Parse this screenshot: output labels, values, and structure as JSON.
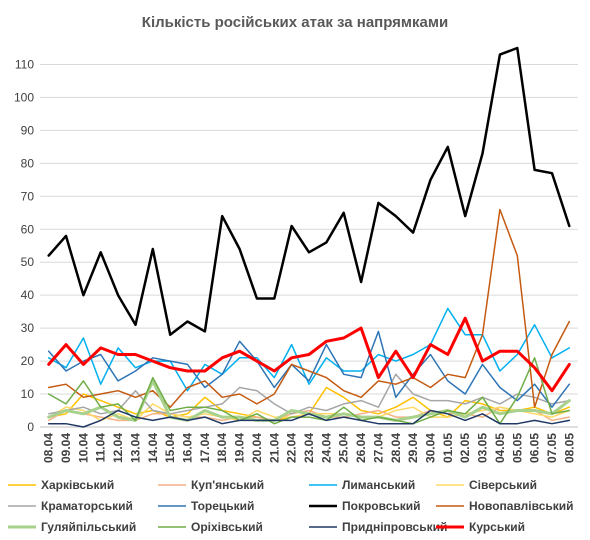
{
  "chart_data": {
    "type": "line",
    "title": "Кількість російських атак за напрямками",
    "xlabel": "",
    "ylabel": "",
    "ylim": [
      0,
      115
    ],
    "yticks": [
      0,
      10,
      20,
      30,
      40,
      50,
      60,
      70,
      80,
      90,
      100,
      110
    ],
    "grid": "horizontal",
    "legend_position": "bottom",
    "x": [
      "08.04",
      "09.04",
      "10.04",
      "11.04",
      "12.04",
      "13.04",
      "14.04",
      "15.04",
      "16.04",
      "17.04",
      "18.04",
      "19.04",
      "20.04",
      "21.04",
      "22.04",
      "23.04",
      "24.04",
      "25.04",
      "26.04",
      "27.04",
      "28.04",
      "29.04",
      "30.04",
      "01.05",
      "02.05",
      "03.05",
      "04.05",
      "05.05",
      "06.05",
      "07.05",
      "08.05"
    ],
    "series": [
      {
        "name": "Харківський",
        "color": "#ffc000",
        "width": 1.5,
        "values": [
          3,
          4,
          10,
          8,
          6,
          4,
          5,
          3,
          4,
          9,
          5,
          4,
          3,
          2,
          3,
          4,
          12,
          9,
          5,
          4,
          6,
          9,
          5,
          3,
          8,
          7,
          5,
          5,
          6,
          4,
          6
        ]
      },
      {
        "name": "Куп'янський",
        "color": "#f4b183",
        "width": 1.5,
        "values": [
          2,
          5,
          4,
          3,
          2,
          2,
          4,
          4,
          3,
          3,
          2,
          3,
          3,
          2,
          4,
          5,
          3,
          3,
          4,
          5,
          3,
          3,
          5,
          4,
          4,
          3,
          6,
          5,
          5,
          2,
          3
        ]
      },
      {
        "name": "Лиманський",
        "color": "#00b0f0",
        "width": 1.5,
        "values": [
          21,
          18,
          27,
          13,
          24,
          18,
          20,
          20,
          11,
          19,
          16,
          21,
          21,
          15,
          25,
          13,
          21,
          17,
          17,
          22,
          20,
          22,
          25,
          36,
          28,
          28,
          17,
          22,
          31,
          21,
          24
        ]
      },
      {
        "name": "Сіверський",
        "color": "#ffd966",
        "width": 1.5,
        "values": [
          3,
          6,
          5,
          2,
          4,
          2,
          7,
          4,
          3,
          4,
          3,
          2,
          5,
          3,
          3,
          4,
          4,
          4,
          3,
          3,
          5,
          6,
          3,
          3,
          4,
          5,
          6,
          5,
          4,
          3,
          5
        ]
      },
      {
        "name": "Краматорський",
        "color": "#a6a6a6",
        "width": 1.5,
        "values": [
          4,
          5,
          6,
          4,
          5,
          11,
          5,
          4,
          5,
          6,
          7,
          12,
          11,
          7,
          4,
          6,
          5,
          7,
          8,
          6,
          16,
          10,
          8,
          8,
          7,
          9,
          7,
          10,
          9,
          7,
          8
        ]
      },
      {
        "name": "Торецький",
        "color": "#2e75b6",
        "width": 1.5,
        "values": [
          23,
          17,
          20,
          22,
          14,
          17,
          21,
          20,
          19,
          12,
          16,
          26,
          20,
          12,
          19,
          14,
          25,
          16,
          15,
          29,
          9,
          16,
          22,
          14,
          10,
          19,
          12,
          8,
          13,
          6,
          13
        ]
      },
      {
        "name": "Покровський",
        "color": "#000000",
        "width": 2.5,
        "values": [
          52,
          58,
          40,
          53,
          40,
          31,
          54,
          28,
          32,
          29,
          64,
          54,
          39,
          39,
          61,
          53,
          56,
          65,
          44,
          68,
          64,
          59,
          75,
          85,
          64,
          83,
          113,
          115,
          78,
          77,
          61
        ]
      },
      {
        "name": "Новопавлівський",
        "color": "#c55a11",
        "width": 1.5,
        "values": [
          12,
          13,
          9,
          10,
          11,
          9,
          11,
          6,
          12,
          14,
          9,
          10,
          7,
          10,
          19,
          17,
          15,
          11,
          9,
          14,
          13,
          15,
          12,
          16,
          15,
          28,
          66,
          52,
          6,
          22,
          32
        ]
      },
      {
        "name": "Гуляйпільський",
        "color": "#a9d18e",
        "width": 3,
        "values": [
          3,
          5,
          4,
          6,
          3,
          2,
          14,
          3,
          2,
          5,
          3,
          3,
          2,
          2,
          5,
          4,
          3,
          4,
          3,
          3,
          2,
          3,
          4,
          5,
          3,
          6,
          4,
          5,
          5,
          4,
          8
        ]
      },
      {
        "name": "Оріхівський",
        "color": "#70ad47",
        "width": 1.5,
        "values": [
          10,
          7,
          14,
          6,
          7,
          2,
          15,
          5,
          6,
          6,
          5,
          2,
          4,
          1,
          3,
          3,
          2,
          6,
          2,
          3,
          2,
          1,
          3,
          5,
          4,
          9,
          1,
          9,
          21,
          4,
          5
        ]
      },
      {
        "name": "Придніпровський",
        "color": "#1f3864",
        "width": 1.5,
        "values": [
          1,
          1,
          0,
          2,
          5,
          3,
          2,
          3,
          2,
          3,
          1,
          2,
          2,
          2,
          2,
          4,
          2,
          3,
          2,
          1,
          1,
          1,
          5,
          4,
          2,
          4,
          1,
          1,
          2,
          1,
          2
        ]
      },
      {
        "name": "Курський",
        "color": "#ff0000",
        "width": 3,
        "values": [
          19,
          25,
          19,
          24,
          22,
          22,
          20,
          18,
          17,
          17,
          21,
          23,
          20,
          17,
          21,
          22,
          26,
          27,
          30,
          15,
          23,
          15,
          25,
          22,
          33,
          20,
          23,
          23,
          18,
          11,
          19
        ]
      }
    ]
  }
}
